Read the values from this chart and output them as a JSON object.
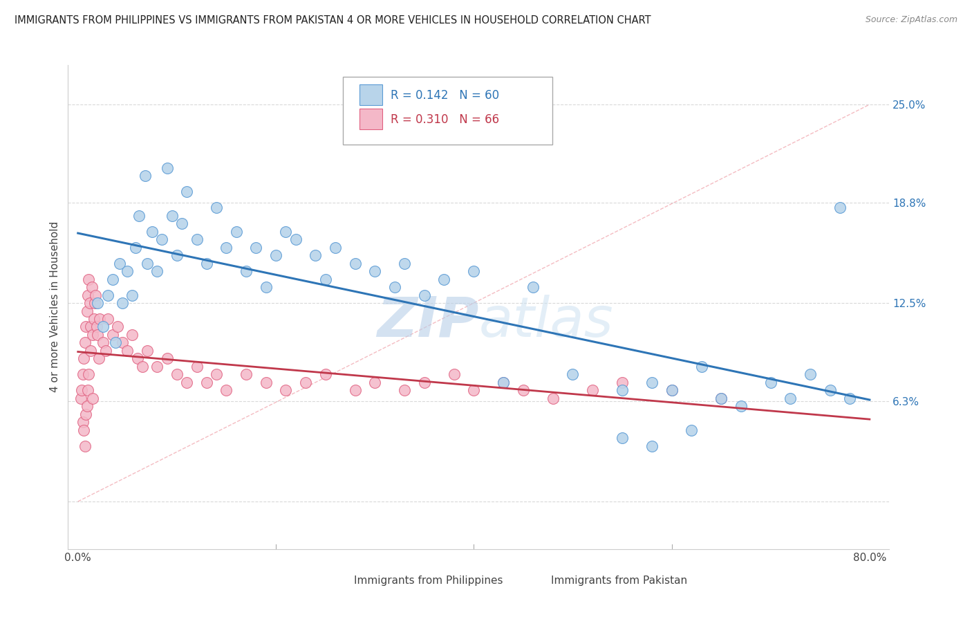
{
  "title": "IMMIGRANTS FROM PHILIPPINES VS IMMIGRANTS FROM PAKISTAN 4 OR MORE VEHICLES IN HOUSEHOLD CORRELATION CHART",
  "source": "Source: ZipAtlas.com",
  "ylabel": "4 or more Vehicles in Household",
  "legend1_label": "Immigrants from Philippines",
  "legend2_label": "Immigrants from Pakistan",
  "r1": "0.142",
  "n1": "60",
  "r2": "0.310",
  "n2": "66",
  "color_blue": "#b8d4ea",
  "color_blue_edge": "#5b9bd5",
  "color_pink": "#f4b8c8",
  "color_pink_edge": "#e06080",
  "color_blue_line": "#2e75b6",
  "color_pink_line": "#c0384b",
  "color_diag": "#f0a0a8",
  "color_grid": "#d0d0d0",
  "watermark": "ZIPAtlas",
  "watermark_color": "#c8ddf0",
  "phil_x": [
    2.0,
    2.5,
    3.0,
    3.5,
    3.8,
    4.2,
    4.5,
    5.0,
    5.5,
    5.8,
    6.2,
    6.8,
    7.0,
    7.5,
    8.0,
    8.5,
    9.0,
    9.5,
    10.0,
    10.5,
    11.0,
    12.0,
    13.0,
    14.0,
    15.0,
    16.0,
    17.0,
    18.0,
    19.0,
    20.0,
    21.0,
    22.0,
    24.0,
    25.0,
    26.0,
    28.0,
    30.0,
    32.0,
    33.0,
    35.0,
    37.0,
    40.0,
    43.0,
    46.0,
    50.0,
    55.0,
    58.0,
    60.0,
    63.0,
    65.0,
    67.0,
    70.0,
    72.0,
    74.0,
    76.0,
    78.0,
    55.0,
    58.0,
    62.0,
    77.0
  ],
  "phil_y": [
    12.5,
    11.0,
    13.0,
    14.0,
    10.0,
    15.0,
    12.5,
    14.5,
    13.0,
    16.0,
    18.0,
    20.5,
    15.0,
    17.0,
    14.5,
    16.5,
    21.0,
    18.0,
    15.5,
    17.5,
    19.5,
    16.5,
    15.0,
    18.5,
    16.0,
    17.0,
    14.5,
    16.0,
    13.5,
    15.5,
    17.0,
    16.5,
    15.5,
    14.0,
    16.0,
    15.0,
    14.5,
    13.5,
    15.0,
    13.0,
    14.0,
    14.5,
    7.5,
    13.5,
    8.0,
    7.0,
    7.5,
    7.0,
    8.5,
    6.5,
    6.0,
    7.5,
    6.5,
    8.0,
    7.0,
    6.5,
    4.0,
    3.5,
    4.5,
    18.5
  ],
  "pak_x": [
    0.3,
    0.4,
    0.5,
    0.5,
    0.6,
    0.6,
    0.7,
    0.7,
    0.8,
    0.8,
    0.9,
    0.9,
    1.0,
    1.0,
    1.1,
    1.1,
    1.2,
    1.3,
    1.3,
    1.4,
    1.5,
    1.5,
    1.6,
    1.7,
    1.8,
    1.9,
    2.0,
    2.1,
    2.2,
    2.5,
    2.8,
    3.0,
    3.5,
    4.0,
    4.5,
    5.0,
    5.5,
    6.0,
    6.5,
    7.0,
    8.0,
    9.0,
    10.0,
    11.0,
    12.0,
    13.0,
    14.0,
    15.0,
    17.0,
    19.0,
    21.0,
    23.0,
    25.0,
    28.0,
    30.0,
    33.0,
    35.0,
    38.0,
    40.0,
    43.0,
    45.0,
    48.0,
    52.0,
    55.0,
    60.0,
    65.0
  ],
  "pak_y": [
    6.5,
    7.0,
    8.0,
    5.0,
    9.0,
    4.5,
    10.0,
    3.5,
    11.0,
    5.5,
    12.0,
    6.0,
    13.0,
    7.0,
    14.0,
    8.0,
    12.5,
    11.0,
    9.5,
    13.5,
    10.5,
    6.5,
    11.5,
    12.5,
    13.0,
    11.0,
    10.5,
    9.0,
    11.5,
    10.0,
    9.5,
    11.5,
    10.5,
    11.0,
    10.0,
    9.5,
    10.5,
    9.0,
    8.5,
    9.5,
    8.5,
    9.0,
    8.0,
    7.5,
    8.5,
    7.5,
    8.0,
    7.0,
    8.0,
    7.5,
    7.0,
    7.5,
    8.0,
    7.0,
    7.5,
    7.0,
    7.5,
    8.0,
    7.0,
    7.5,
    7.0,
    6.5,
    7.0,
    7.5,
    7.0,
    6.5
  ],
  "xlim": [
    -1.0,
    82.0
  ],
  "ylim": [
    -3.0,
    27.5
  ],
  "y_tick_vals": [
    0.0,
    6.3,
    12.5,
    18.8,
    25.0
  ],
  "y_tick_labels": [
    "",
    "6.3%",
    "12.5%",
    "18.8%",
    "25.0%"
  ],
  "x_tick_vals": [
    0.0,
    20.0,
    40.0,
    60.0,
    80.0
  ],
  "x_tick_labels": [
    "0.0%",
    "",
    "",
    "",
    "80.0%"
  ]
}
